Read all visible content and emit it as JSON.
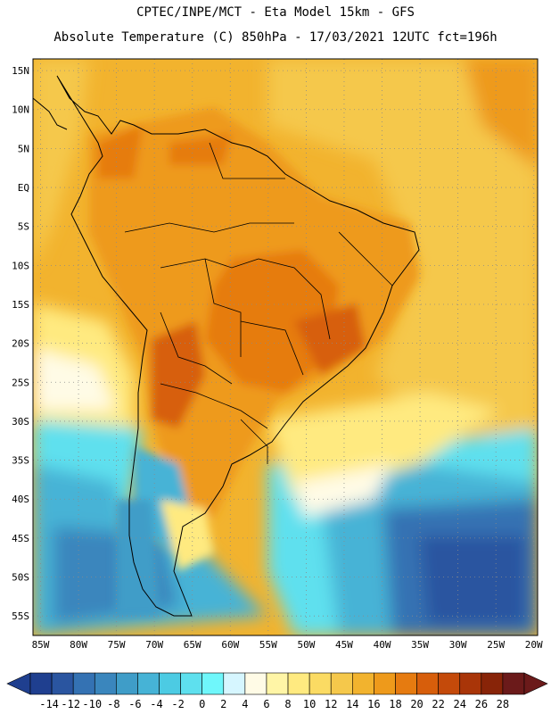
{
  "header": {
    "title_line1": "CPTEC/INPE/MCT -  Eta Model 15km - GFS",
    "title_line2": "Absolute Temperature (C) 850hPa - 17/03/2021 12UTC fct=196h"
  },
  "map": {
    "lat_labels": [
      "15N",
      "10N",
      "5N",
      "EQ",
      "5S",
      "10S",
      "15S",
      "20S",
      "25S",
      "30S",
      "35S",
      "40S",
      "45S",
      "50S",
      "55S"
    ],
    "lon_labels": [
      "85W",
      "80W",
      "75W",
      "70W",
      "65W",
      "60W",
      "55W",
      "50W",
      "45W",
      "40W",
      "35W",
      "30W",
      "25W",
      "20W"
    ],
    "lat_values": [
      15,
      10,
      5,
      0,
      -5,
      -10,
      -15,
      -20,
      -25,
      -30,
      -35,
      -40,
      -45,
      -50,
      -55
    ],
    "lon_values": [
      -85,
      -80,
      -75,
      -70,
      -65,
      -60,
      -55,
      -50,
      -45,
      -40,
      -35,
      -30,
      -25,
      -20
    ],
    "lat_range": [
      -57.5,
      16.5
    ],
    "lon_range": [
      -86,
      -19.5
    ]
  },
  "colorbar": {
    "labels": [
      "-14",
      "-12",
      "-10",
      "-8",
      "-6",
      "-4",
      "-2",
      "0",
      "2",
      "4",
      "6",
      "8",
      "10",
      "12",
      "14",
      "16",
      "18",
      "20",
      "22",
      "24",
      "26",
      "28"
    ],
    "colors": [
      "#1f3f8f",
      "#2a55a0",
      "#3472b3",
      "#3a86bd",
      "#3f9dc8",
      "#46b3d6",
      "#4ccbe3",
      "#5ee0ee",
      "#6ff7fb",
      "#d6f6ff",
      "#fffbe6",
      "#fff5a6",
      "#ffea80",
      "#fbdb63",
      "#f5c84b",
      "#f2b32e",
      "#ee9a1b",
      "#e67b10",
      "#d75e0b",
      "#c44a0a",
      "#a93508",
      "#882408",
      "#6b1a1a"
    ]
  }
}
